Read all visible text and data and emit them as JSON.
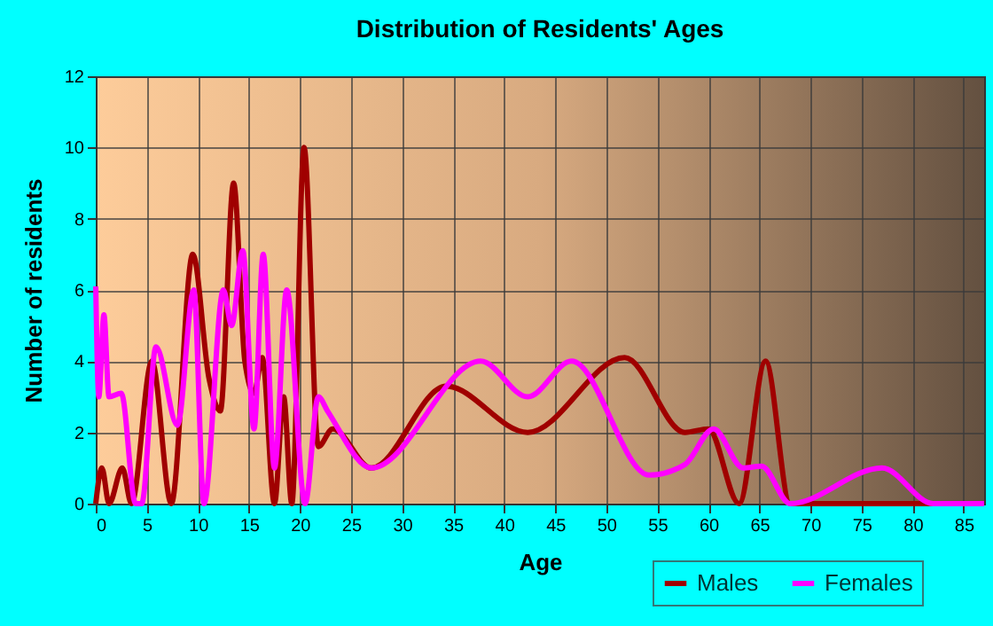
{
  "chart_data": {
    "type": "line",
    "title": "Distribution of Residents' Ages",
    "xlabel": "Age",
    "ylabel": "Number of residents",
    "xlim": [
      0,
      87
    ],
    "xticks": [
      0,
      5,
      10,
      15,
      20,
      25,
      30,
      35,
      40,
      45,
      50,
      55,
      60,
      65,
      70,
      75,
      80,
      85
    ],
    "ylim": [
      0,
      12
    ],
    "yticks": [
      0,
      2,
      4,
      6,
      8,
      10,
      12
    ],
    "grid": true,
    "legend": "bottom",
    "line_style": "solid",
    "marker": "none",
    "series": [
      {
        "name": "Males",
        "color": "#a00000",
        "x": [
          0,
          0.6,
          1.3,
          2.6,
          3.5,
          5.5,
          7.4,
          9.5,
          11.1,
          12.2,
          13.5,
          14.6,
          15.5,
          16.3,
          17.5,
          18.4,
          19.2,
          20.4,
          21.8,
          23.2,
          27,
          34.3,
          42.3,
          51.8,
          57.7,
          60,
          63,
          65.6,
          68,
          87
        ],
        "values": [
          0,
          1,
          0,
          1,
          0,
          4,
          0,
          7,
          3.5,
          2.6,
          9,
          4,
          3.1,
          4.1,
          0,
          3,
          0,
          10,
          1.6,
          2.1,
          1,
          3.3,
          2,
          4.1,
          2,
          2.1,
          0,
          4,
          0,
          0
        ]
      },
      {
        "name": "Females",
        "color": "#ff00ff",
        "x": [
          0,
          0.3,
          0.8,
          1.3,
          2.5,
          3.9,
          4.5,
          5.9,
          8,
          9.6,
          10.6,
          12.5,
          13.3,
          14.4,
          15.5,
          16.4,
          17.5,
          18.7,
          20.5,
          21.8,
          22.7,
          27,
          37.7,
          42.3,
          46.6,
          54.2,
          57.7,
          60.5,
          63.4,
          65.2,
          68,
          77,
          82,
          87
        ],
        "values": [
          6.1,
          3,
          5.3,
          3,
          3.1,
          0,
          0,
          4.4,
          2.2,
          6,
          0,
          6,
          5,
          7.1,
          2.1,
          7,
          1,
          6,
          0,
          3,
          2.6,
          1,
          4,
          3,
          4,
          0.8,
          1.1,
          2.1,
          1,
          1.05,
          0,
          1,
          0,
          0
        ]
      }
    ]
  }
}
